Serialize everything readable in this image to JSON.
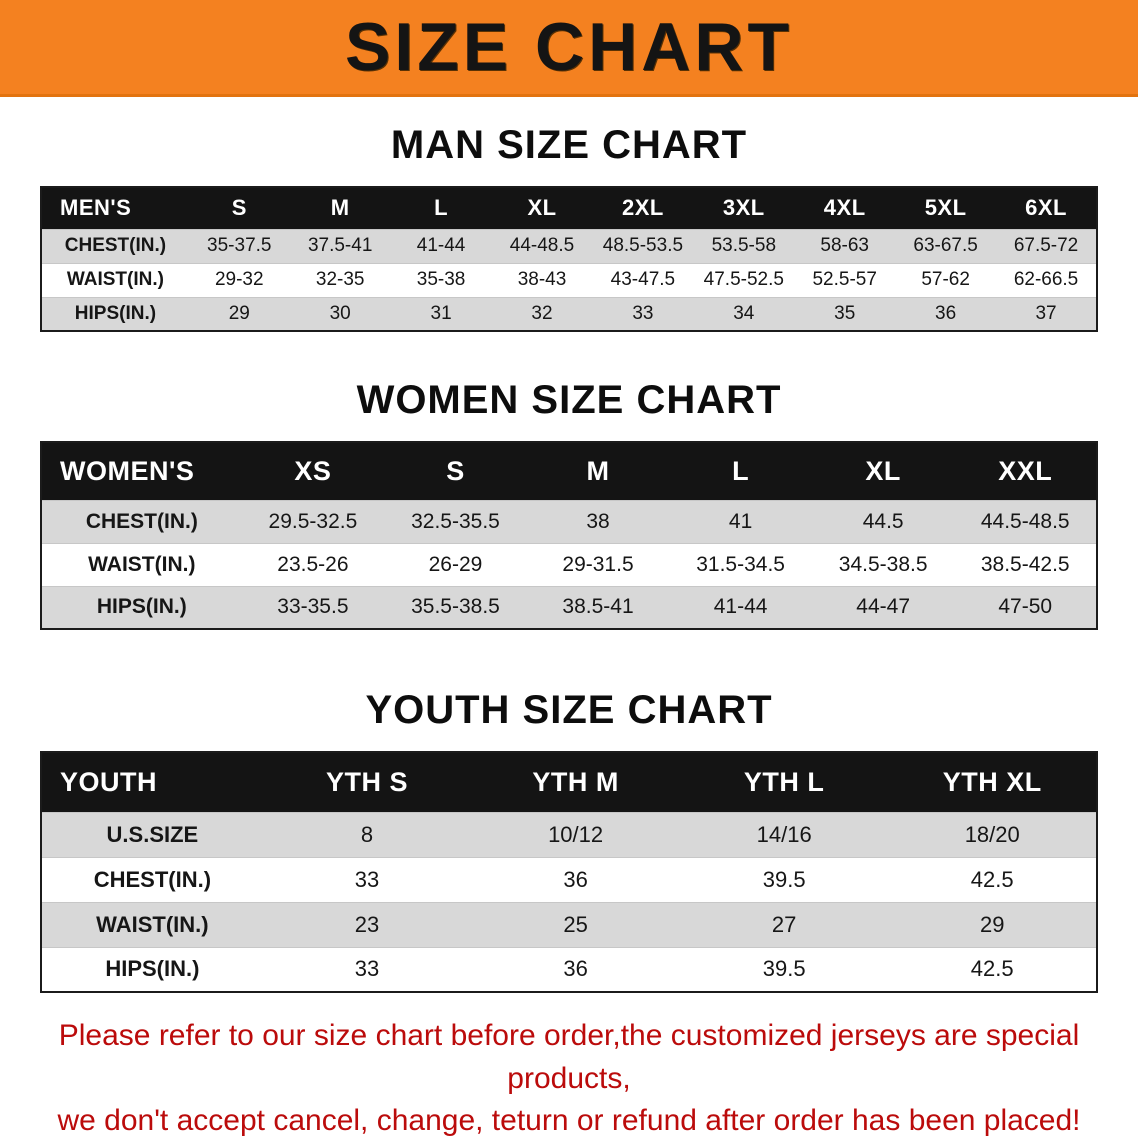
{
  "banner": {
    "title": "SIZE CHART",
    "bg_color": "#f48120",
    "text_color": "#141414"
  },
  "chart_data": [
    {
      "type": "table",
      "title": "MAN SIZE CHART",
      "columns": [
        "MEN'S",
        "S",
        "M",
        "L",
        "XL",
        "2XL",
        "3XL",
        "4XL",
        "5XL",
        "6XL"
      ],
      "rows": [
        [
          "CHEST(IN.)",
          "35-37.5",
          "37.5-41",
          "41-44",
          "44-48.5",
          "48.5-53.5",
          "53.5-58",
          "58-63",
          "63-67.5",
          "67.5-72"
        ],
        [
          "WAIST(IN.)",
          "29-32",
          "32-35",
          "35-38",
          "38-43",
          "43-47.5",
          "47.5-52.5",
          "52.5-57",
          "57-62",
          "62-66.5"
        ],
        [
          "HIPS(IN.)",
          "29",
          "30",
          "31",
          "32",
          "33",
          "34",
          "35",
          "36",
          "37"
        ]
      ]
    },
    {
      "type": "table",
      "title": "WOMEN SIZE CHART",
      "columns": [
        "WOMEN'S",
        "XS",
        "S",
        "M",
        "L",
        "XL",
        "XXL"
      ],
      "rows": [
        [
          "CHEST(IN.)",
          "29.5-32.5",
          "32.5-35.5",
          "38",
          "41",
          "44.5",
          "44.5-48.5"
        ],
        [
          "WAIST(IN.)",
          "23.5-26",
          "26-29",
          "29-31.5",
          "31.5-34.5",
          "34.5-38.5",
          "38.5-42.5"
        ],
        [
          "HIPS(IN.)",
          "33-35.5",
          "35.5-38.5",
          "38.5-41",
          "41-44",
          "44-47",
          "47-50"
        ]
      ]
    },
    {
      "type": "table",
      "title": "YOUTH SIZE CHART",
      "columns": [
        "YOUTH",
        "YTH S",
        "YTH M",
        "YTH L",
        "YTH XL"
      ],
      "rows": [
        [
          "U.S.SIZE",
          "8",
          "10/12",
          "14/16",
          "18/20"
        ],
        [
          "CHEST(IN.)",
          "33",
          "36",
          "39.5",
          "42.5"
        ],
        [
          "WAIST(IN.)",
          "23",
          "25",
          "27",
          "29"
        ],
        [
          "HIPS(IN.)",
          "33",
          "36",
          "39.5",
          "42.5"
        ]
      ]
    }
  ],
  "footer": {
    "line1": "Please refer to our size chart before order,the customized jerseys are special products,",
    "line2": "we don't accept cancel, change, teturn or refund after order has been placed!",
    "color": "#bb0b0b"
  }
}
